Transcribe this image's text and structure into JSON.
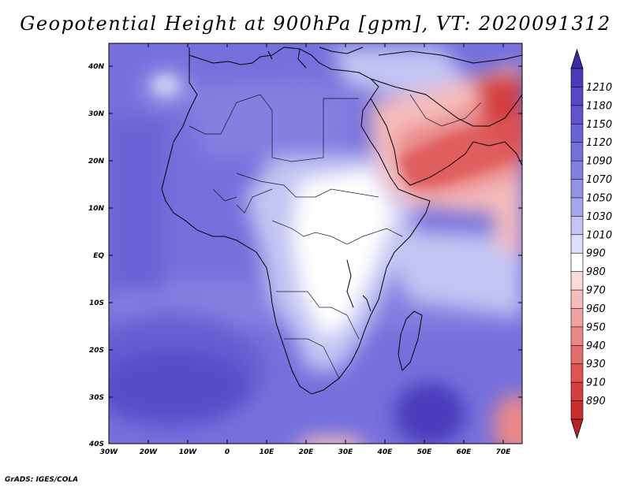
{
  "title": "Geopotential Height at 900hPa [gpm], VT: 2020091312",
  "credit": "GrADS: IGES/COLA",
  "map": {
    "variable": "Geopotential Height",
    "level": "900hPa",
    "units": "gpm",
    "valid_time": "2020091312",
    "lat_labels": [
      "40N",
      "30N",
      "20N",
      "10N",
      "EQ",
      "10S",
      "20S",
      "30S",
      "40S"
    ],
    "lon_labels": [
      "30W",
      "20W",
      "10W",
      "0",
      "10E",
      "20E",
      "30E",
      "40E",
      "50E",
      "60E",
      "70E"
    ]
  },
  "colorbar": {
    "labels": [
      "1210",
      "1180",
      "1150",
      "1120",
      "1090",
      "1070",
      "1050",
      "1030",
      "1010",
      "990",
      "980",
      "970",
      "960",
      "950",
      "940",
      "930",
      "910",
      "890"
    ],
    "colors": {
      "top": "#3a2aa8",
      "seg": [
        "#4a3bbc",
        "#5547c6",
        "#5f54cf",
        "#6a62d6",
        "#7670dc",
        "#8380e1",
        "#9492e7",
        "#a6a6ec",
        "#c2c4f3",
        "#dcdff8",
        "#ffffff",
        "#fbd9d9",
        "#f5bcbc",
        "#f0a2a2",
        "#ea8888",
        "#e46e6e",
        "#dd5454",
        "#d53e3e",
        "#c92e2e"
      ],
      "bottom": "#b82424"
    }
  }
}
